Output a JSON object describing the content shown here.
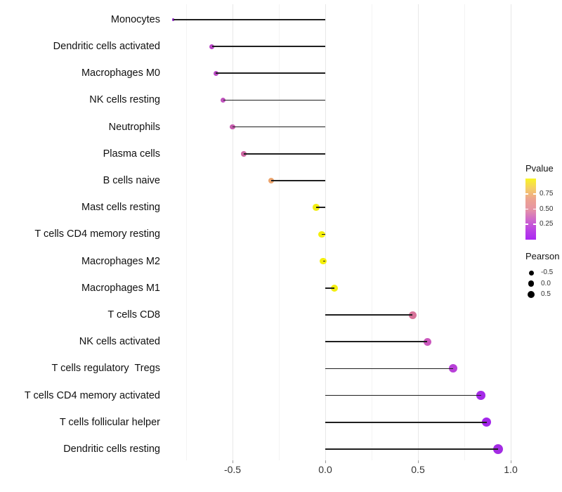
{
  "chart_data": {
    "type": "lollipop",
    "title": "",
    "xlabel": "",
    "ylabel": "",
    "background": "#ffffff",
    "stick_color": "#1f1f1f",
    "x_axis": {
      "range": [
        -0.91,
        1.05
      ],
      "ticks": [
        {
          "label": "-0.5",
          "value": -0.5
        },
        {
          "label": "0.0",
          "value": 0.0
        },
        {
          "label": "0.5",
          "value": 0.5
        },
        {
          "label": "1.0",
          "value": 1.0
        }
      ],
      "minor_gridlines": [
        -0.75,
        -0.25,
        0.25,
        0.75
      ]
    },
    "points": [
      {
        "label": "Monocytes",
        "pearson": -0.82,
        "color": "#9327C9",
        "size": 3.5
      },
      {
        "label": "Dendritic cells activated",
        "pearson": -0.61,
        "color": "#B846C5",
        "size": 7.0
      },
      {
        "label": "Macrophages M0",
        "pearson": -0.59,
        "color": "#BA4AC4",
        "size": 7.0
      },
      {
        "label": "NK cells resting",
        "pearson": -0.55,
        "color": "#C052BD",
        "size": 7.2
      },
      {
        "label": "Neutrophils",
        "pearson": -0.5,
        "color": "#C55CAD",
        "size": 7.4
      },
      {
        "label": "Plasma cells",
        "pearson": -0.44,
        "color": "#CD67A3",
        "size": 7.6
      },
      {
        "label": "B cells naive",
        "pearson": -0.29,
        "color": "#EDA56E",
        "size": 8.0
      },
      {
        "label": "Mast cells resting",
        "pearson": -0.05,
        "color": "#F2EE11",
        "size": 9.6
      },
      {
        "label": "T cells CD4 memory resting",
        "pearson": -0.02,
        "color": "#F4EF0B",
        "size": 9.8
      },
      {
        "label": "Macrophages M2",
        "pearson": -0.01,
        "color": "#F4EF0B",
        "size": 9.8
      },
      {
        "label": "Macrophages M1",
        "pearson": 0.05,
        "color": "#F3EE10",
        "size": 10.0
      },
      {
        "label": "T cells CD8",
        "pearson": 0.47,
        "color": "#D8739A",
        "size": 11.0
      },
      {
        "label": "NK cells activated",
        "pearson": 0.55,
        "color": "#CB58BD",
        "size": 11.4
      },
      {
        "label": "T cells regulatory  Tregs",
        "pearson": 0.69,
        "color": "#B840D8",
        "size": 12.0
      },
      {
        "label": "T cells CD4 memory activated",
        "pearson": 0.84,
        "color": "#A52BE8",
        "size": 12.6
      },
      {
        "label": "T cells follicular helper",
        "pearson": 0.87,
        "color": "#A326EB",
        "size": 13.0
      },
      {
        "label": "Dendritic cells resting",
        "pearson": 0.93,
        "color": "#A32CE3",
        "size": 14.0
      }
    ],
    "legend_pvalue": {
      "title": "Pvalue",
      "ticks": [
        {
          "label": "0.75",
          "value": 0.75
        },
        {
          "label": "0.50",
          "value": 0.5
        },
        {
          "label": "0.25",
          "value": 0.25
        }
      ],
      "gradient_top_to_bottom": [
        "#F8F524",
        "#F5CD66",
        "#EDA490",
        "#E695A4",
        "#D06BC9",
        "#BB45E3",
        "#AB28F2"
      ],
      "scale_range": [
        0,
        1
      ]
    },
    "legend_pearson": {
      "title": "Pearson",
      "items": [
        {
          "label": "-0.5",
          "size": 7.0
        },
        {
          "label": "0.0",
          "size": 8.7
        },
        {
          "label": "0.5",
          "size": 10.2
        }
      ]
    }
  }
}
